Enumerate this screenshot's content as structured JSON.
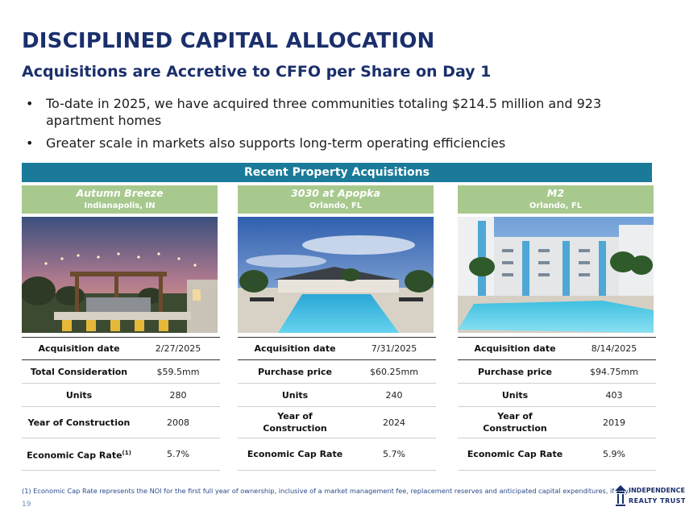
{
  "title": "DISCIPLINED CAPITAL ALLOCATION",
  "subtitle": "Acquisitions are Accretive to CFFO per Share on Day 1",
  "bullets": [
    "To-date in 2025, we have acquired three communities totaling $214.5 million and 923 apartment homes",
    "Greater scale in markets also supports long-term operating efficiencies"
  ],
  "banner": "Recent Property Acquisitions",
  "properties": [
    {
      "name": "Autumn Breeze",
      "location": "Indianapolis, IN",
      "rows": [
        {
          "label": "Acquisition date",
          "value": "2/27/2025"
        },
        {
          "label": "Total Consideration",
          "value": "$59.5mm"
        },
        {
          "label": "Units",
          "value": "280"
        },
        {
          "label": "Year of Construction",
          "value": "2008"
        },
        {
          "label": "Economic Cap Rate",
          "label_sup": "(1)",
          "value": "5.7%"
        }
      ]
    },
    {
      "name": "3030 at Apopka",
      "location": "Orlando, FL",
      "rows": [
        {
          "label": "Acquisition date",
          "value": "7/31/2025"
        },
        {
          "label": "Purchase price",
          "value": "$60.25mm"
        },
        {
          "label": "Units",
          "value": "240"
        },
        {
          "label": "Year of Construction",
          "value": "2024"
        },
        {
          "label": "Economic Cap Rate",
          "value": "5.7%"
        }
      ]
    },
    {
      "name": "M2",
      "location": "Orlando, FL",
      "rows": [
        {
          "label": "Acquisition date",
          "value": "8/14/2025"
        },
        {
          "label": "Purchase price",
          "value": "$94.75mm"
        },
        {
          "label": "Units",
          "value": "403"
        },
        {
          "label": "Year of Construction",
          "value": "2019"
        },
        {
          "label": "Economic Cap Rate",
          "value": "5.9%"
        }
      ]
    }
  ],
  "footnote": "(1)    Economic Cap Rate represents the NOI for the first full year of ownership, inclusive of a market management fee, replacement reserves and anticipated capital expenditures, if any.",
  "page_number": "19",
  "logo": {
    "line1": "INDEPENDENCE",
    "line2": "REALTY TRUST"
  },
  "colors": {
    "navy": "#1a2f6b",
    "banner": "#1b7a99",
    "header_green": "#a8c98e"
  }
}
